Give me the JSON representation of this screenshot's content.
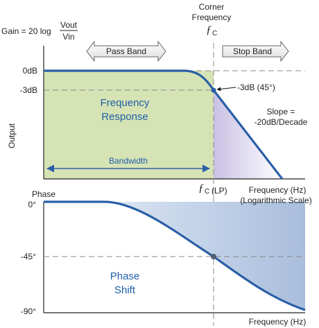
{
  "gain_label": "Gain = 20 log",
  "gain_frac_num": "Vout",
  "gain_frac_den": "Vin",
  "corner_title": "Corner",
  "corner_title2": "Frequency",
  "fc_symbol": "ƒ",
  "fc_sub": "C",
  "pass_band": "Pass Band",
  "stop_band": "Stop Band",
  "odb": "0dB",
  "m3db": "-3dB",
  "m3db_point": "-3dB (45°)",
  "freq_resp_1": "Frequency",
  "freq_resp_2": "Response",
  "slope_1": "Slope =",
  "slope_2": "-20dB/Decade",
  "output_label": "Output",
  "bandwidth": "Bandwidth",
  "fc_lp": "(LP)",
  "freq_hz_1": "Frequency (Hz)",
  "log_scale": "(Logarithmic Scale)",
  "phase_title": "Phase",
  "phase_0": "0°",
  "phase_45": "-45°",
  "phase_90": "-90°",
  "phase_shift_1": "Phase",
  "phase_shift_2": "Shift",
  "freq_hz_2": "Frequency (Hz)",
  "colors": {
    "curve": "#2a5fa6",
    "pass_fill": "#d6e3b5",
    "stop_fill": "#cfc8e4",
    "dashed": "#888888",
    "text_blue": "#1f5fa8"
  }
}
